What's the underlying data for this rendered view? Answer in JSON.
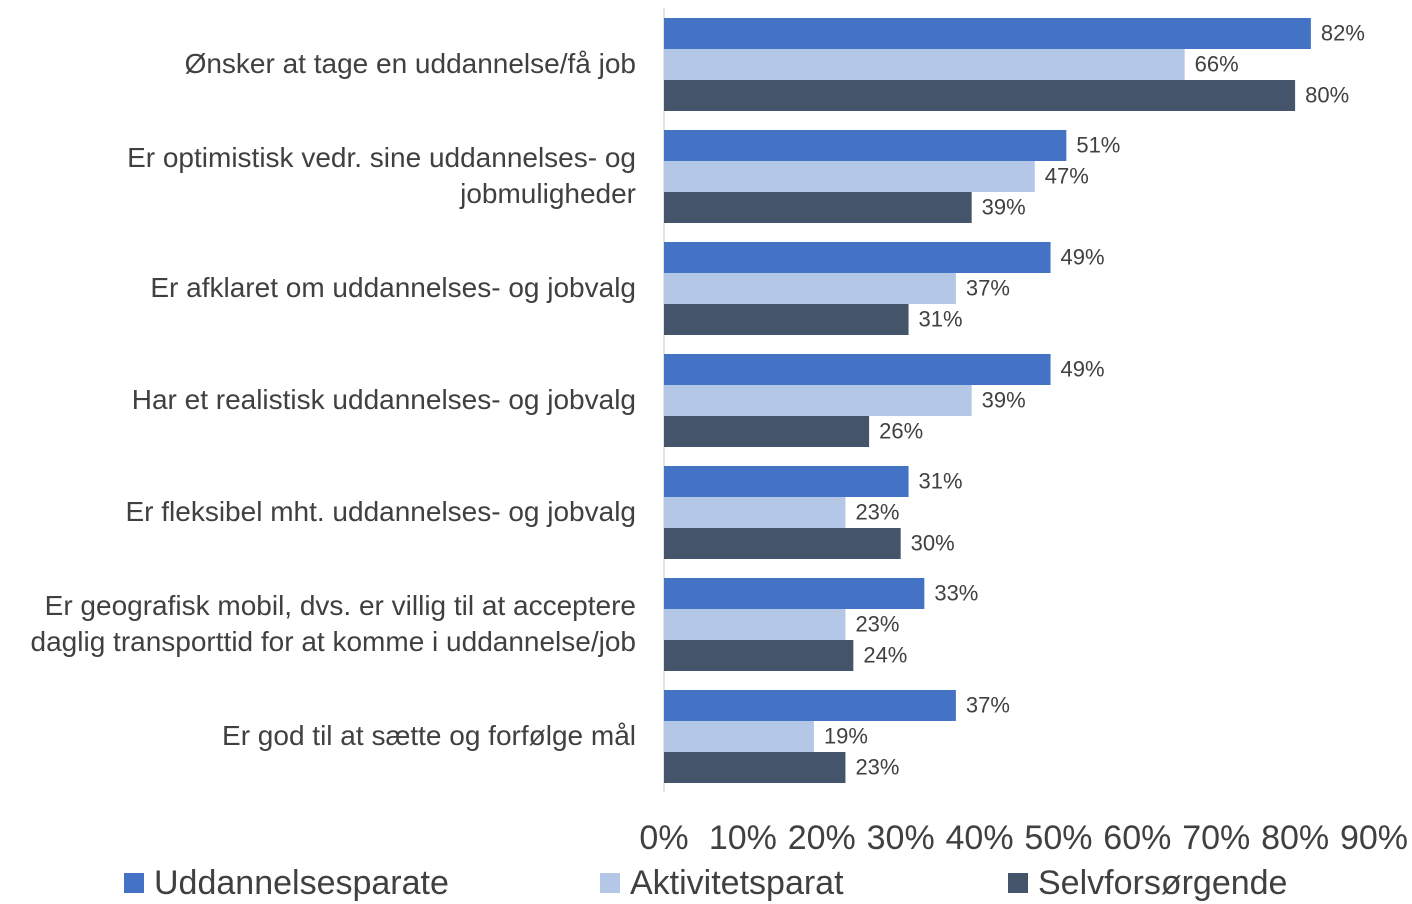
{
  "chart_data": {
    "type": "bar",
    "orientation": "horizontal",
    "categories": [
      "Ønsker at tage en uddannelse/få job",
      "Er optimistisk vedr. sine uddannelses- og jobmuligheder",
      "Er afklaret om uddannelses- og jobvalg",
      "Har et realistisk uddannelses- og jobvalg",
      "Er fleksibel mht. uddannelses- og jobvalg",
      "Er geografisk mobil, dvs. er villig til at acceptere daglig transporttid for at komme i uddannelse/job",
      "Er god til at sætte og forfølge mål"
    ],
    "series": [
      {
        "name": "Uddannelsesparate",
        "color": "#4472c4",
        "values": [
          82,
          51,
          49,
          49,
          31,
          33,
          37
        ],
        "value_labels": [
          "82%",
          "51%",
          "49%",
          "49%",
          "31%",
          "33%",
          "37%"
        ]
      },
      {
        "name": "Aktivitetsparat",
        "color": "#b4c7e7",
        "values": [
          66,
          47,
          37,
          39,
          23,
          23,
          19
        ],
        "value_labels": [
          "66%",
          "47%",
          "37%",
          "39%",
          "23%",
          "23%",
          "19%"
        ]
      },
      {
        "name": "Selvforsørgende",
        "color": "#44546a",
        "values": [
          80,
          39,
          31,
          26,
          30,
          24,
          23
        ],
        "value_labels": [
          "80%",
          "39%",
          "31%",
          "26%",
          "30%",
          "24%",
          "23%"
        ]
      }
    ],
    "xlim": [
      0,
      90
    ],
    "xticks": [
      {
        "value": 0,
        "label": "0%"
      },
      {
        "value": 10,
        "label": "10%"
      },
      {
        "value": 20,
        "label": "20%"
      },
      {
        "value": 30,
        "label": "30%"
      },
      {
        "value": 40,
        "label": "40%"
      },
      {
        "value": 50,
        "label": "50%"
      },
      {
        "value": 60,
        "label": "60%"
      },
      {
        "value": 70,
        "label": "70%"
      },
      {
        "value": 80,
        "label": "80%"
      },
      {
        "value": 90,
        "label": "90%"
      }
    ],
    "grid": false,
    "legend": "bottom"
  }
}
